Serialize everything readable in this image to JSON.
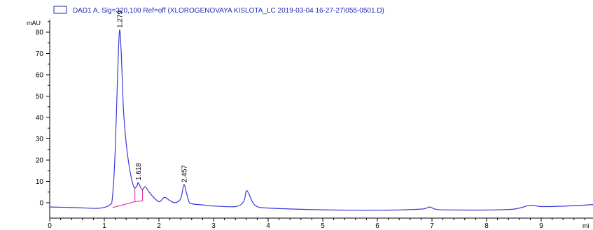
{
  "chart_data": {
    "type": "line",
    "legend": "DAD1 A, Sig=320,100 Ref=off (XLOROGENOVAYA KISLOTA_LC 2019-03-04 16-27-27\\055-0501.D)",
    "ylabel": "mAU",
    "xlabel": "mi",
    "xlim": [
      0,
      10
    ],
    "ylim": [
      -5,
      86
    ],
    "x_ticks": [
      0,
      1,
      2,
      3,
      4,
      5,
      6,
      7,
      8,
      9
    ],
    "y_ticks": [
      0,
      10,
      20,
      30,
      40,
      50,
      60,
      70,
      80
    ],
    "grid": false,
    "colors": {
      "trace": "#3a3ad6",
      "baseline": "#e0209a",
      "legend": "#1f2bb0"
    },
    "series": [
      {
        "x": [
          0.0,
          0.5,
          0.9,
          1.1,
          1.15,
          1.2,
          1.25,
          1.279,
          1.31,
          1.35,
          1.4,
          1.45,
          1.5,
          1.55,
          1.6,
          1.618,
          1.65,
          1.7,
          1.75,
          1.85,
          2.0,
          2.1,
          2.2,
          2.3,
          2.4,
          2.457,
          2.5,
          2.55,
          2.6,
          2.8,
          3.0,
          3.4,
          3.55,
          3.6,
          3.65,
          3.72,
          3.8,
          4.0,
          5.0,
          6.0,
          6.8,
          6.95,
          7.1,
          7.5,
          8.0,
          8.5,
          8.8,
          9.0,
          9.5,
          10.0
        ],
        "y": [
          -2.0,
          -2.3,
          -2.6,
          -1.0,
          3.0,
          25.0,
          65.0,
          81.0,
          70.0,
          44.0,
          28.0,
          18.0,
          11.0,
          7.0,
          8.0,
          9.5,
          8.0,
          6.0,
          7.5,
          4.0,
          0.5,
          2.5,
          1.0,
          0.0,
          2.0,
          8.5,
          5.0,
          0.5,
          -0.5,
          -1.0,
          -1.5,
          -1.8,
          0.5,
          5.5,
          4.0,
          0.0,
          -1.8,
          -2.5,
          -3.3,
          -3.5,
          -3.0,
          -2.0,
          -3.2,
          -3.4,
          -3.4,
          -3.0,
          -1.2,
          -1.8,
          -1.5,
          -0.8
        ]
      }
    ],
    "peaks": [
      {
        "time": 1.279,
        "label": "1.279",
        "height": 81.0
      },
      {
        "time": 1.618,
        "label": "1.618",
        "height": 9.5
      },
      {
        "time": 2.457,
        "label": "2.457",
        "height": 8.5
      }
    ],
    "integration_baselines": [
      {
        "x": [
          1.15,
          1.56
        ],
        "y": [
          -2.3,
          0.5
        ]
      },
      {
        "x": [
          1.56,
          1.7
        ],
        "y": [
          0.5,
          0.9
        ]
      }
    ],
    "integration_drops": [
      {
        "x": 1.56,
        "y": 7.0
      },
      {
        "x": 1.7,
        "y": 6.5
      }
    ]
  }
}
